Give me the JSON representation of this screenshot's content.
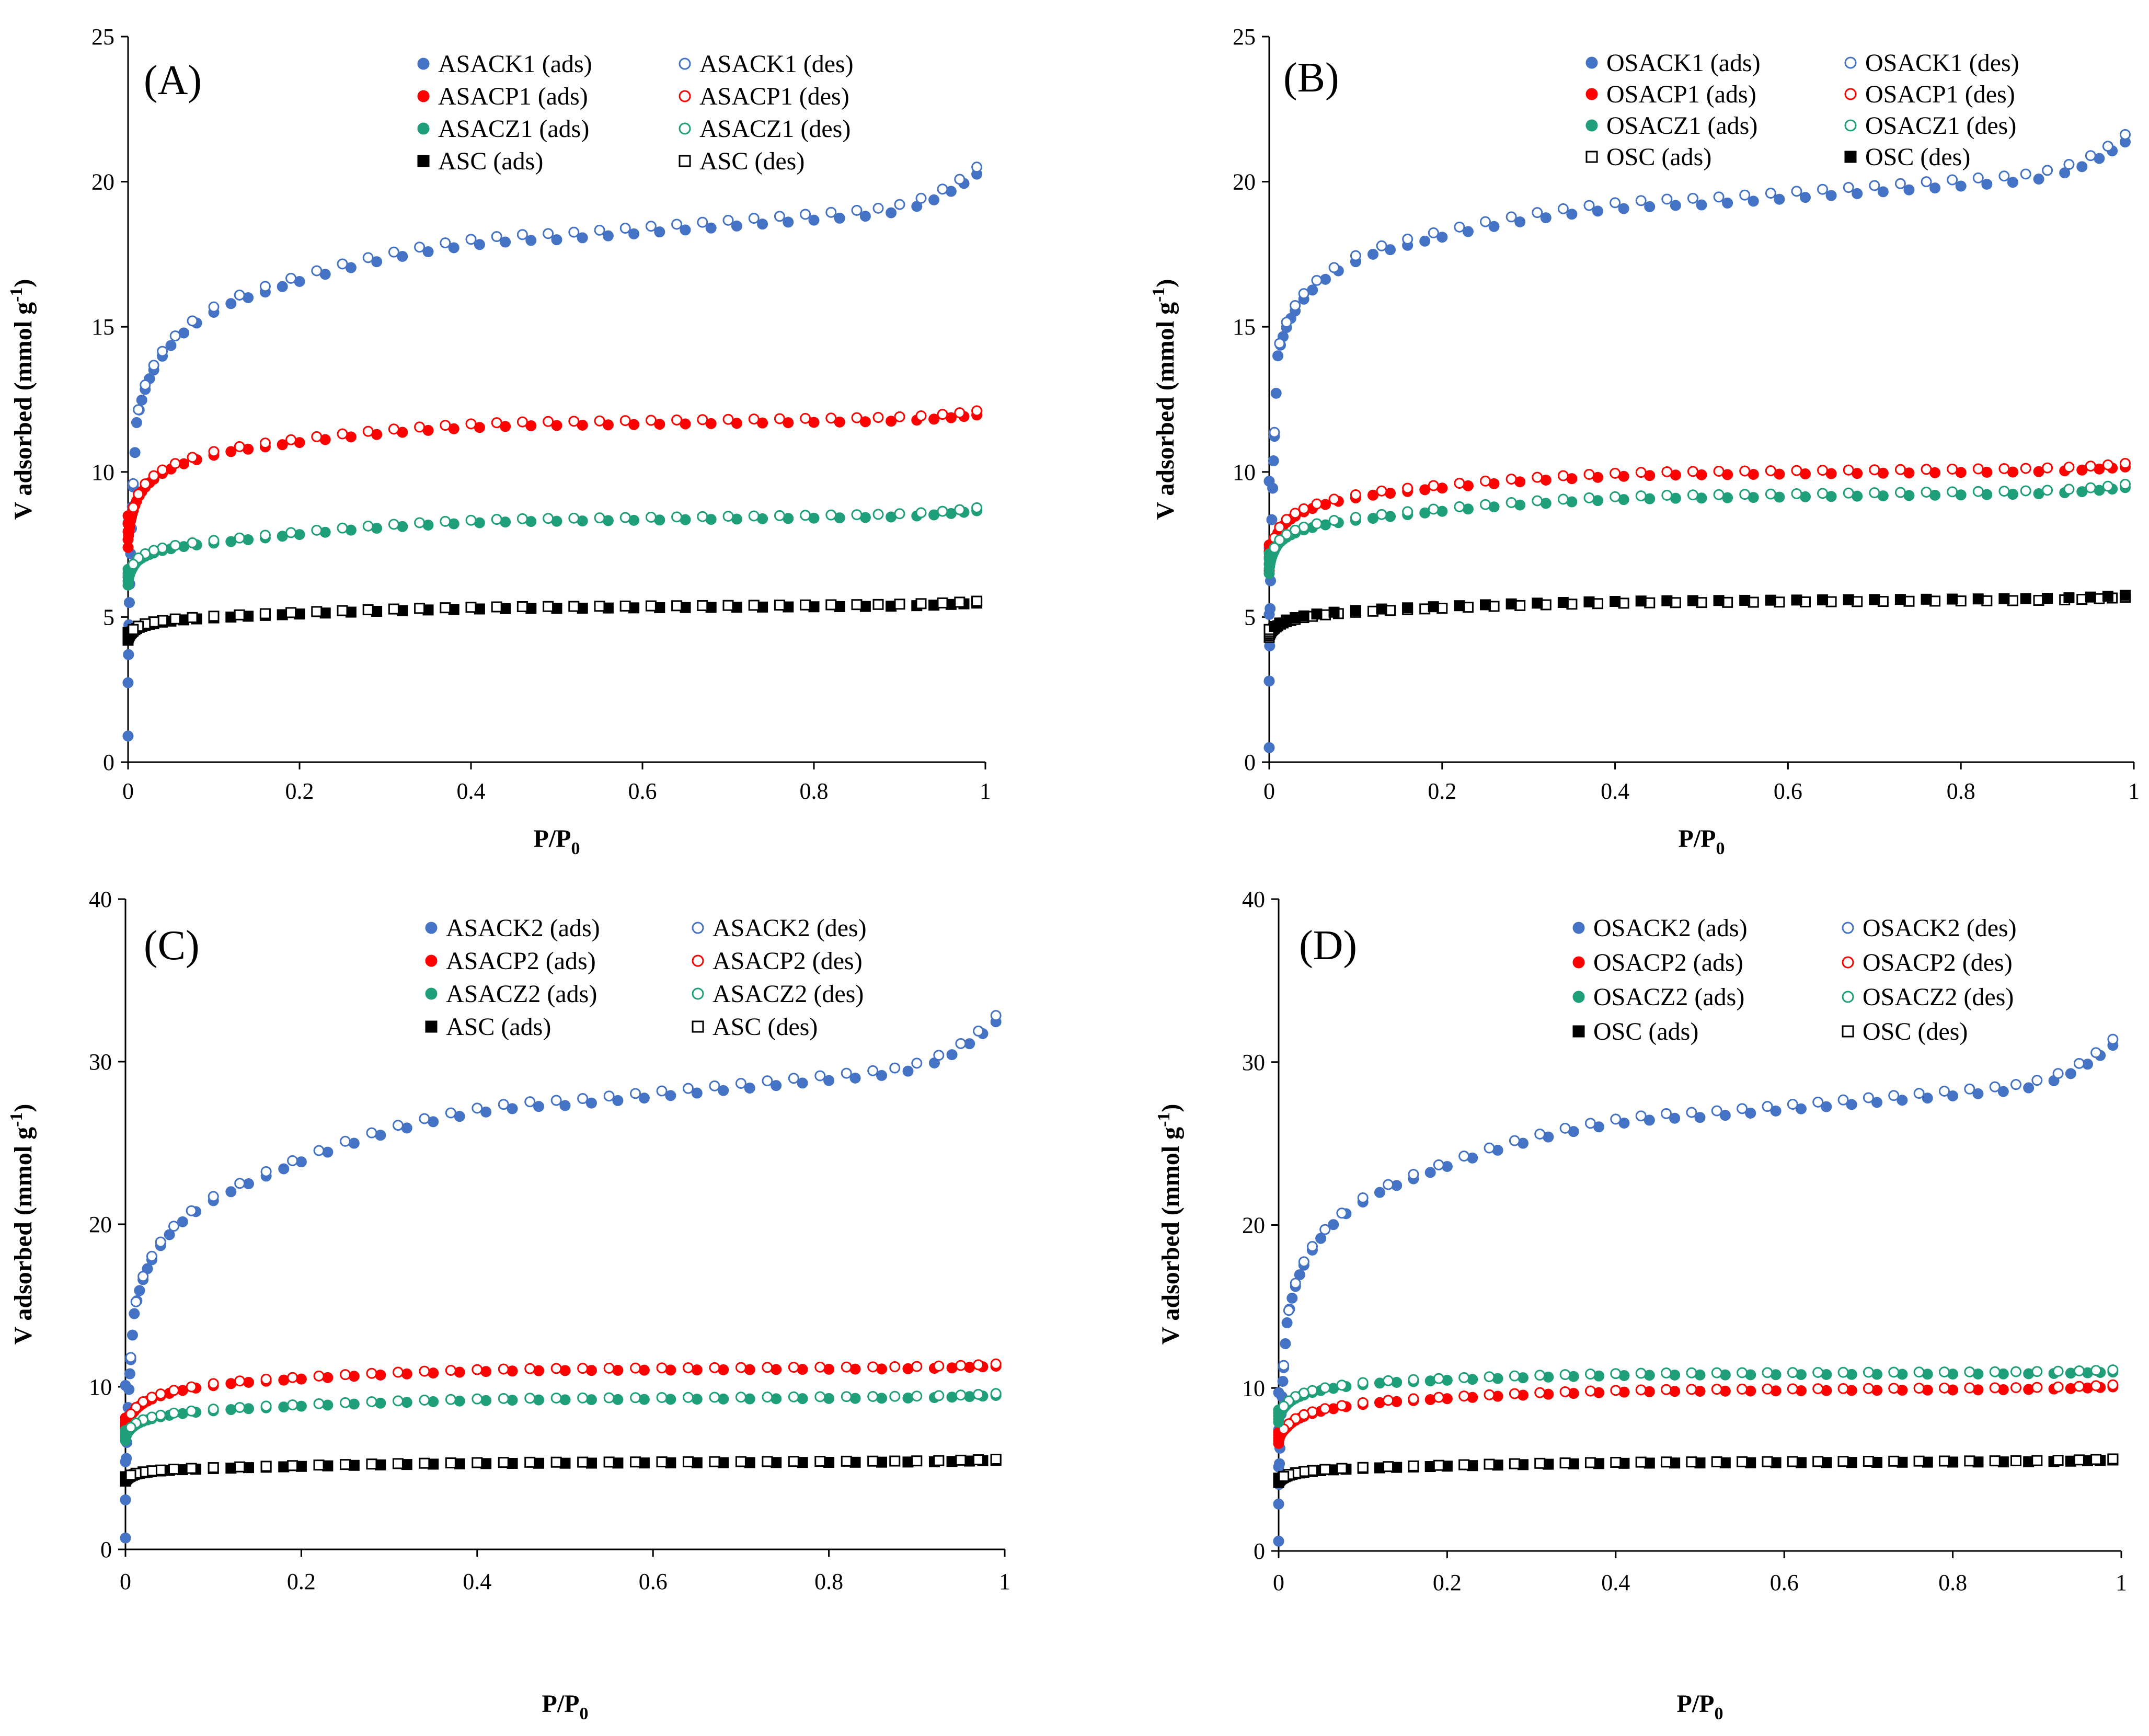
{
  "chart_data": [
    {
      "type": "scatter",
      "panel_label": "(A)",
      "xlabel": "P/P",
      "xlabel_sub": "0",
      "ylabel": "V adsorbed (mmol g",
      "ylabel_sup": "-1",
      "ylabel_close": ")",
      "xlim": [
        0,
        1
      ],
      "ylim": [
        0,
        25
      ],
      "xticks": [
        "0",
        "0.2",
        "0.4",
        "0.6",
        "0.8",
        "1"
      ],
      "yticks": [
        "0",
        "5",
        "10",
        "15",
        "20",
        "25"
      ],
      "series": [
        {
          "name": "ASACK1 (ads)",
          "color": "#4472C4",
          "marker": "circle",
          "filled": true,
          "base": [
            0.9,
            11.7,
            15.8,
            18.0,
            20.5
          ]
        },
        {
          "name": "ASACK1 (des)",
          "color": "#4472C4",
          "marker": "circle",
          "filled": false,
          "base": [
            0.9,
            11.7,
            15.8,
            18.0,
            20.5
          ]
        },
        {
          "name": "ASACP1 (ads)",
          "color": "#FF0000",
          "marker": "circle",
          "filled": true,
          "base": [
            7.4,
            9.0,
            10.7,
            11.6,
            12.0
          ]
        },
        {
          "name": "ASACP1 (des)",
          "color": "#FF0000",
          "marker": "circle",
          "filled": false,
          "base": [
            7.4,
            9.0,
            10.7,
            11.6,
            12.0
          ]
        },
        {
          "name": "ASACZ1 (ads)",
          "color": "#1F9E7A",
          "marker": "circle",
          "filled": true,
          "base": [
            6.1,
            6.9,
            7.6,
            8.3,
            8.7
          ]
        },
        {
          "name": "ASACZ1 (des)",
          "color": "#1F9E7A",
          "marker": "circle",
          "filled": false,
          "base": [
            6.1,
            6.9,
            7.6,
            8.3,
            8.7
          ]
        },
        {
          "name": "ASC (ads)",
          "color": "#000000",
          "marker": "square",
          "filled": true,
          "base": [
            4.2,
            4.6,
            5.0,
            5.3,
            5.5
          ]
        },
        {
          "name": "ASC (des)",
          "color": "#000000",
          "marker": "square",
          "filled": false,
          "base": [
            4.2,
            4.6,
            5.0,
            5.3,
            5.5
          ]
        }
      ]
    },
    {
      "type": "scatter",
      "panel_label": "(B)",
      "xlabel": "P/P",
      "xlabel_sub": "0",
      "ylabel": "V adsorbed (mmol g",
      "ylabel_sup": "-1",
      "ylabel_close": ")",
      "xlim": [
        0,
        1
      ],
      "ylim": [
        0,
        25
      ],
      "xticks": [
        "0",
        "0.2",
        "0.4",
        "0.6",
        "0.8",
        "1"
      ],
      "yticks": [
        "0",
        "5",
        "10",
        "15",
        "20",
        "25"
      ],
      "series": [
        {
          "name": "OSACK1 (ads)",
          "color": "#4472C4",
          "marker": "circle",
          "filled": true,
          "base": [
            0.5,
            14.0,
            17.5,
            19.2,
            21.6
          ]
        },
        {
          "name": "OSACK1 (des)",
          "color": "#4472C4",
          "marker": "circle",
          "filled": false,
          "base": [
            0.5,
            14.0,
            17.5,
            19.2,
            21.6
          ]
        },
        {
          "name": "OSACP1 (ads)",
          "color": "#FF0000",
          "marker": "circle",
          "filled": true,
          "base": [
            6.6,
            7.9,
            9.2,
            9.9,
            10.2
          ]
        },
        {
          "name": "OSACP1 (des)",
          "color": "#FF0000",
          "marker": "circle",
          "filled": false,
          "base": [
            6.6,
            7.9,
            9.2,
            9.9,
            10.2
          ]
        },
        {
          "name": "OSACZ1 (ads)",
          "color": "#1F9E7A",
          "marker": "circle",
          "filled": true,
          "base": [
            6.5,
            7.5,
            8.4,
            9.1,
            9.5
          ]
        },
        {
          "name": "OSACZ1 (des)",
          "color": "#1F9E7A",
          "marker": "circle",
          "filled": false,
          "base": [
            6.5,
            7.5,
            8.4,
            9.1,
            9.5
          ]
        },
        {
          "name": "OSC (ads)",
          "color": "#000000",
          "marker": "square",
          "filled": false,
          "base": [
            4.3,
            4.7,
            5.2,
            5.5,
            5.7
          ]
        },
        {
          "name": "OSC (des)",
          "color": "#000000",
          "marker": "square",
          "filled": true,
          "base": [
            4.3,
            4.7,
            5.2,
            5.5,
            5.7
          ]
        }
      ]
    },
    {
      "type": "scatter",
      "panel_label": "(C)",
      "xlabel": "P/P",
      "xlabel_sub": "0",
      "ylabel": "V adsorbed (mmol g",
      "ylabel_sup": "-1",
      "ylabel_close": ")",
      "xlim": [
        0,
        1
      ],
      "ylim": [
        0,
        40
      ],
      "xticks": [
        "0",
        "0.2",
        "0.4",
        "0.6",
        "0.8",
        "1"
      ],
      "yticks": [
        "0",
        "10",
        "20",
        "30",
        "40"
      ],
      "series": [
        {
          "name": "ASACK2 (ads)",
          "color": "#4472C4",
          "marker": "circle",
          "filled": true,
          "base": [
            0.7,
            14.5,
            22.0,
            27.3,
            33.0
          ]
        },
        {
          "name": "ASACK2 (des)",
          "color": "#4472C4",
          "marker": "circle",
          "filled": false,
          "base": [
            0.7,
            14.5,
            22.0,
            27.3,
            33.0
          ]
        },
        {
          "name": "ASACP2 (ads)",
          "color": "#FF0000",
          "marker": "circle",
          "filled": true,
          "base": [
            7.2,
            8.5,
            10.2,
            11.0,
            11.3
          ]
        },
        {
          "name": "ASACP2 (des)",
          "color": "#FF0000",
          "marker": "circle",
          "filled": false,
          "base": [
            7.2,
            8.5,
            10.2,
            11.0,
            11.3
          ]
        },
        {
          "name": "ASACZ2 (ads)",
          "color": "#1F9E7A",
          "marker": "circle",
          "filled": true,
          "base": [
            6.7,
            7.6,
            8.6,
            9.2,
            9.5
          ]
        },
        {
          "name": "ASACZ2 (des)",
          "color": "#1F9E7A",
          "marker": "circle",
          "filled": false,
          "base": [
            6.7,
            7.6,
            8.6,
            9.2,
            9.5
          ]
        },
        {
          "name": "ASC (ads)",
          "color": "#000000",
          "marker": "square",
          "filled": true,
          "base": [
            4.2,
            4.6,
            5.0,
            5.3,
            5.5
          ]
        },
        {
          "name": "ASC (des)",
          "color": "#000000",
          "marker": "square",
          "filled": false,
          "base": [
            4.2,
            4.6,
            5.0,
            5.3,
            5.5
          ]
        }
      ]
    },
    {
      "type": "scatter",
      "panel_label": "(D)",
      "xlabel": "P/P",
      "xlabel_sub": "0",
      "ylabel": "V adsorbed (mmol g",
      "ylabel_sup": "-1",
      "ylabel_close": ")",
      "xlim": [
        0,
        1
      ],
      "ylim": [
        0,
        40
      ],
      "xticks": [
        "0",
        "0.2",
        "0.4",
        "0.6",
        "0.8",
        "1"
      ],
      "yticks": [
        "0",
        "10",
        "20",
        "30",
        "40"
      ],
      "series": [
        {
          "name": "OSACK2 (ads)",
          "color": "#4472C4",
          "marker": "circle",
          "filled": true,
          "base": [
            0.6,
            14.0,
            22.0,
            26.6,
            31.5
          ]
        },
        {
          "name": "OSACK2 (des)",
          "color": "#4472C4",
          "marker": "circle",
          "filled": false,
          "base": [
            0.6,
            14.0,
            22.0,
            26.6,
            31.5
          ]
        },
        {
          "name": "OSACP2 (ads)",
          "color": "#FF0000",
          "marker": "circle",
          "filled": true,
          "base": [
            6.6,
            7.6,
            9.1,
            9.8,
            10.1
          ]
        },
        {
          "name": "OSACP2 (des)",
          "color": "#FF0000",
          "marker": "circle",
          "filled": false,
          "base": [
            6.6,
            7.6,
            9.1,
            9.8,
            10.1
          ]
        },
        {
          "name": "OSACZ2 (ads)",
          "color": "#1F9E7A",
          "marker": "circle",
          "filled": true,
          "base": [
            7.9,
            9.0,
            10.3,
            10.8,
            11.0
          ]
        },
        {
          "name": "OSACZ2 (des)",
          "color": "#1F9E7A",
          "marker": "circle",
          "filled": false,
          "base": [
            7.9,
            9.0,
            10.3,
            10.8,
            11.0
          ]
        },
        {
          "name": "OSC (ads)",
          "color": "#000000",
          "marker": "square",
          "filled": true,
          "base": [
            4.2,
            4.6,
            5.1,
            5.4,
            5.6
          ]
        },
        {
          "name": "OSC (des)",
          "color": "#000000",
          "marker": "square",
          "filled": false,
          "base": [
            4.2,
            4.6,
            5.1,
            5.4,
            5.6
          ]
        }
      ],
      "base_x": [
        0.0,
        0.01,
        0.12,
        0.5,
        1.0
      ]
    }
  ],
  "isotherm_shape": {
    "base_x": [
      0.0,
      0.01,
      0.12,
      0.5,
      1.0
    ],
    "ads_x": [
      0.0005,
      0.001,
      0.0015,
      0.002,
      0.003,
      0.004,
      0.005,
      0.006,
      0.008,
      0.01,
      0.013,
      0.016,
      0.02,
      0.025,
      0.03,
      0.04,
      0.05,
      0.065,
      0.08,
      0.1,
      0.12,
      0.14,
      0.16,
      0.18,
      0.2,
      0.23,
      0.26,
      0.29,
      0.32,
      0.35,
      0.38,
      0.41,
      0.44,
      0.47,
      0.5,
      0.53,
      0.56,
      0.59,
      0.62,
      0.65,
      0.68,
      0.71,
      0.74,
      0.77,
      0.8,
      0.83,
      0.86,
      0.89,
      0.92,
      0.94,
      0.96,
      0.975,
      0.99
    ],
    "des_x": [
      0.99,
      0.97,
      0.95,
      0.925,
      0.9,
      0.875,
      0.85,
      0.82,
      0.79,
      0.76,
      0.73,
      0.7,
      0.67,
      0.64,
      0.61,
      0.58,
      0.55,
      0.52,
      0.49,
      0.46,
      0.43,
      0.4,
      0.37,
      0.34,
      0.31,
      0.28,
      0.25,
      0.22,
      0.19,
      0.16,
      0.13,
      0.1,
      0.075,
      0.055,
      0.04,
      0.03,
      0.02,
      0.012,
      0.006
    ],
    "tail_start": 0.88,
    "tail_fraction": 0.12
  }
}
